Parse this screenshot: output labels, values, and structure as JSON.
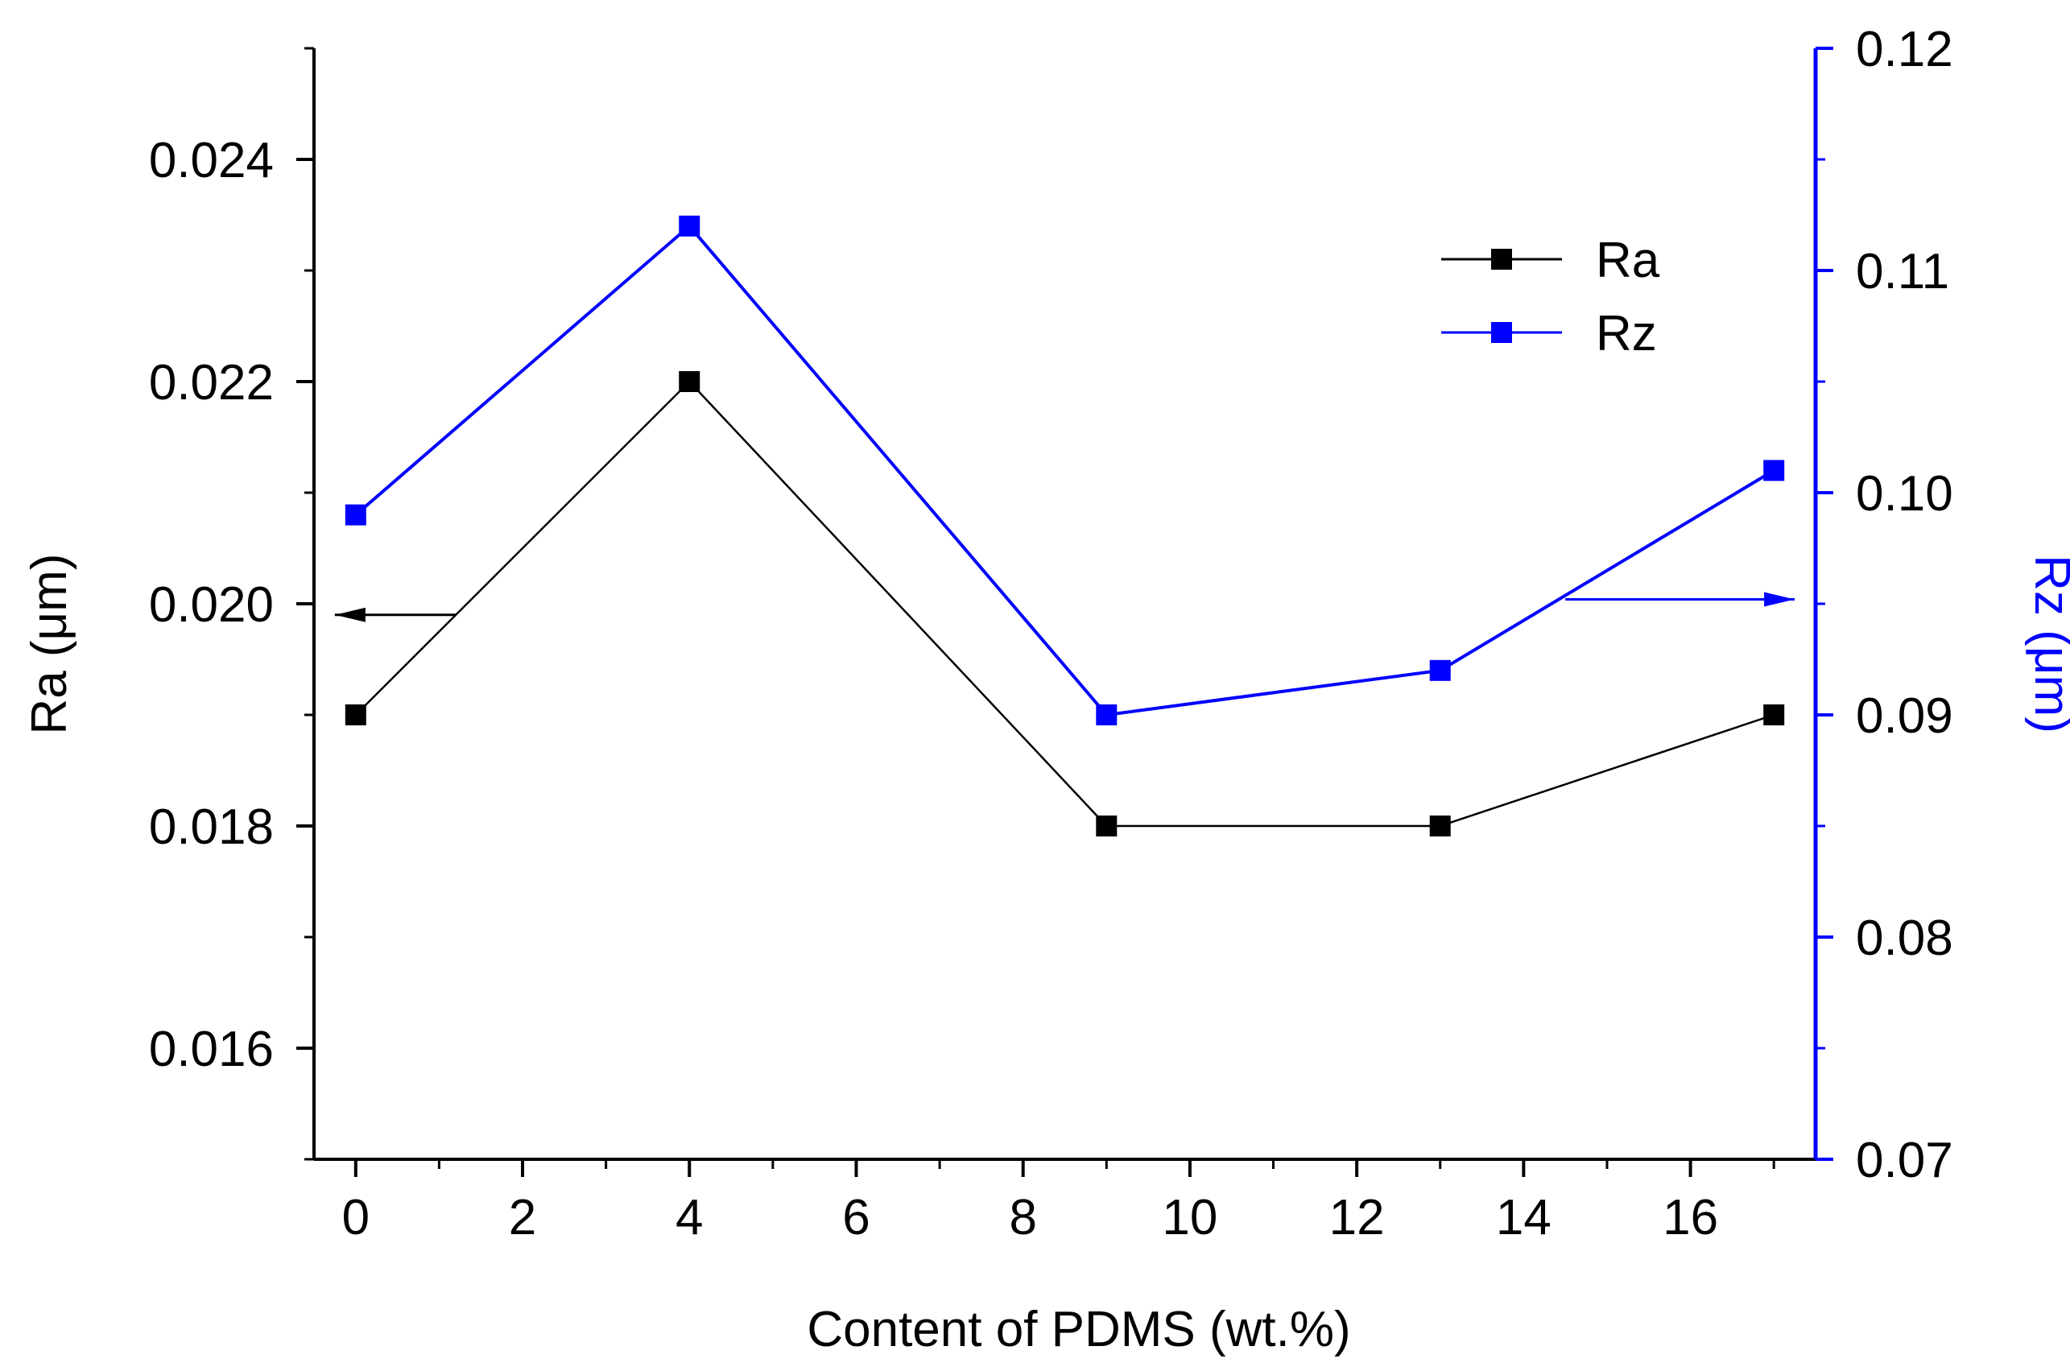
{
  "chart_data": {
    "type": "line",
    "title": "",
    "xlabel": "Content of PDMS (wt.%)",
    "ylabel": "Ra (μm)",
    "y2label": "Rz (μm)",
    "xlim": [
      -0.5,
      17.5
    ],
    "ylim": [
      0.015,
      0.025
    ],
    "y2lim": [
      0.07,
      0.12
    ],
    "x": [
      0,
      4,
      9,
      13,
      17
    ],
    "x_ticks": [
      0,
      2,
      4,
      6,
      8,
      10,
      12,
      14,
      16
    ],
    "x_tick_labels": [
      "0",
      "2",
      "4",
      "6",
      "8",
      "10",
      "12",
      "14",
      "16"
    ],
    "y_ticks": [
      0.016,
      0.018,
      0.02,
      0.022,
      0.024
    ],
    "y_tick_labels": [
      "0.016",
      "0.018",
      "0.020",
      "0.022",
      "0.024"
    ],
    "y2_ticks": [
      0.07,
      0.08,
      0.09,
      0.1,
      0.11,
      0.12
    ],
    "y2_tick_labels": [
      "0.07",
      "0.08",
      "0.09",
      "0.10",
      "0.11",
      "0.12"
    ],
    "legend_position": "top-right",
    "series": [
      {
        "name": "Ra",
        "axis": "left",
        "color": "#000000",
        "values": [
          0.019,
          0.022,
          0.018,
          0.018,
          0.019
        ]
      },
      {
        "name": "Rz",
        "axis": "right",
        "color": "#0000ff",
        "values": [
          0.099,
          0.112,
          0.09,
          0.092,
          0.101
        ]
      }
    ],
    "annotations": [
      {
        "name": "ra-axis-arrow",
        "direction": "left",
        "color": "#000000",
        "x_from": 1.2,
        "x_to": -0.25,
        "y": 0.0199,
        "axis": "left"
      },
      {
        "name": "rz-axis-arrow",
        "direction": "right",
        "color": "#0000ff",
        "x_from": 14.5,
        "x_to": 17.25,
        "y": 0.0952,
        "axis": "right"
      }
    ]
  }
}
